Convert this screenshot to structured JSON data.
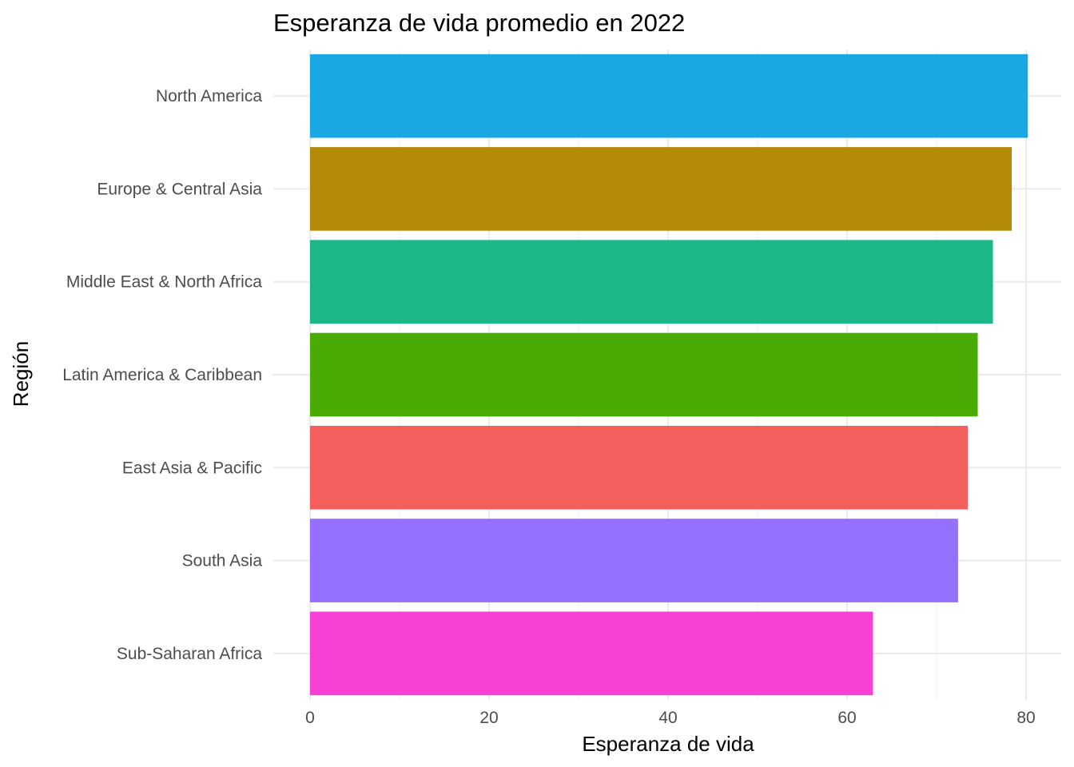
{
  "chart_data": {
    "type": "bar",
    "orientation": "horizontal",
    "title": "Esperanza de vida promedio en 2022",
    "xlabel": "Esperanza de vida",
    "ylabel": "Región",
    "xlim": [
      0,
      80
    ],
    "x_ticks": [
      0,
      20,
      40,
      60,
      80
    ],
    "grid": true,
    "legend": "none",
    "categories": [
      "North America",
      "Europe & Central Asia",
      "Middle East & North Africa",
      "Latin America & Caribbean",
      "East Asia & Pacific",
      "South Asia",
      "Sub-Saharan Africa"
    ],
    "values": [
      80.2,
      78.4,
      76.3,
      74.6,
      73.5,
      72.4,
      62.9
    ],
    "colors": [
      "#1AA8E5",
      "#B48B08",
      "#1BB786",
      "#4AAB04",
      "#F35F5C",
      "#9570FF",
      "#F740D4"
    ]
  }
}
